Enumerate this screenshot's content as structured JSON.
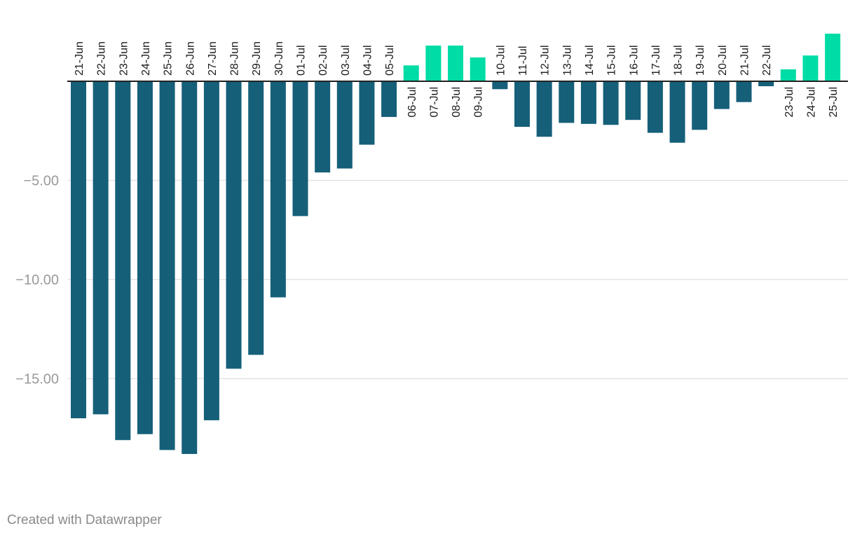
{
  "colors": {
    "negative": "#155f79",
    "positive": "#00dca6",
    "grid": "#e3e3e3",
    "zero_line": "#222222"
  },
  "chart_data": {
    "type": "bar",
    "title": "",
    "xlabel": "",
    "ylabel": "",
    "ylim": [
      -19.5,
      2.5
    ],
    "y_ticks": [
      -5,
      -10,
      -15
    ],
    "y_tick_labels": [
      "−5.00",
      "−10.00",
      "−15.00"
    ],
    "categories": [
      "21-Jun",
      "22-Jun",
      "23-Jun",
      "24-Jun",
      "25-Jun",
      "26-Jun",
      "27-Jun",
      "28-Jun",
      "29-Jun",
      "30-Jun",
      "01-Jul",
      "02-Jul",
      "03-Jul",
      "04-Jul",
      "05-Jul",
      "06-Jul",
      "07-Jul",
      "08-Jul",
      "09-Jul",
      "10-Jul",
      "11-Jul",
      "12-Jul",
      "13-Jul",
      "14-Jul",
      "15-Jul",
      "16-Jul",
      "17-Jul",
      "18-Jul",
      "19-Jul",
      "20-Jul",
      "21-Jul",
      "22-Jul",
      "23-Jul",
      "24-Jul",
      "25-Jul"
    ],
    "values": [
      -17.0,
      -16.8,
      -18.1,
      -17.8,
      -18.6,
      -18.8,
      -17.1,
      -14.5,
      -13.8,
      -10.9,
      -6.8,
      -4.6,
      -4.4,
      -3.2,
      -1.8,
      0.8,
      1.8,
      1.8,
      1.2,
      -0.4,
      -2.3,
      -2.8,
      -2.1,
      -2.15,
      -2.2,
      -1.95,
      -2.6,
      -3.1,
      -2.45,
      -1.4,
      -1.05,
      -0.25,
      0.6,
      1.3,
      2.4
    ]
  },
  "footer": {
    "credit": "Created with Datawrapper"
  }
}
